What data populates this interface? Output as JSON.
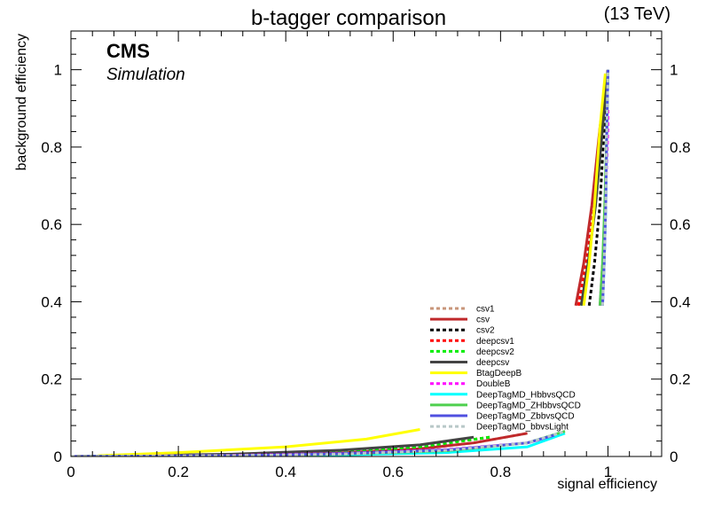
{
  "chart_data": {
    "type": "line",
    "title": "b-tagger comparison",
    "energy_label": "(13 TeV)",
    "experiment_label": "CMS",
    "experiment_sublabel": "Simulation",
    "xlabel": "signal efficiency",
    "ylabel": "background efficiency",
    "xlim": [
      0,
      1.1
    ],
    "ylim": [
      0,
      1.1
    ],
    "x_ticks": [
      0,
      0.2,
      0.4,
      0.6,
      0.8,
      1
    ],
    "x_tick_labels": [
      "0",
      "0.2",
      "0.4",
      "0.6",
      "0.8",
      "1"
    ],
    "y_ticks": [
      0,
      0.2,
      0.4,
      0.6,
      0.8,
      1
    ],
    "y_tick_labels": [
      "0",
      "0.2",
      "0.4",
      "0.6",
      "0.8",
      "1"
    ],
    "grid": false,
    "legend_position": "bottom-right",
    "series": [
      {
        "name": "csv1",
        "color": "#c8967a",
        "dashed": true,
        "x": [
          0,
          0.3,
          0.5,
          0.65,
          0.75,
          0.85
        ],
        "y": [
          0,
          0.003,
          0.009,
          0.02,
          0.035,
          0.06
        ],
        "x2": [
          0.945,
          0.96,
          0.975,
          0.99,
          1.0
        ],
        "y2": [
          0.39,
          0.5,
          0.65,
          0.85,
          1.0
        ]
      },
      {
        "name": "csv",
        "color": "#c0292b",
        "dashed": false,
        "x": [
          0,
          0.3,
          0.5,
          0.65,
          0.75,
          0.85
        ],
        "y": [
          0,
          0.003,
          0.009,
          0.02,
          0.035,
          0.06
        ],
        "x2": [
          0.94,
          0.955,
          0.97,
          0.985,
          1.0
        ],
        "y2": [
          0.39,
          0.5,
          0.65,
          0.85,
          1.0
        ]
      },
      {
        "name": "csv2",
        "color": "#000000",
        "dashed": true,
        "x": [
          0,
          0.3,
          0.5,
          0.65,
          0.75
        ],
        "y": [
          0,
          0.004,
          0.012,
          0.025,
          0.045
        ],
        "x2": [
          0.965,
          0.975,
          0.985,
          0.993,
          1.0
        ],
        "y2": [
          0.39,
          0.5,
          0.65,
          0.85,
          1.0
        ]
      },
      {
        "name": "deepcsv1",
        "color": "#ff0000",
        "dashed": true,
        "x": [
          0,
          0.3,
          0.5,
          0.65,
          0.78
        ],
        "y": [
          0,
          0.005,
          0.012,
          0.025,
          0.05
        ],
        "x2": [
          0.945,
          0.96,
          0.975,
          0.99,
          1.0
        ],
        "y2": [
          0.39,
          0.5,
          0.65,
          0.85,
          1.0
        ]
      },
      {
        "name": "deepcsv2",
        "color": "#00ee00",
        "dashed": true,
        "x": [
          0,
          0.3,
          0.5,
          0.65,
          0.78
        ],
        "y": [
          0,
          0.005,
          0.012,
          0.025,
          0.05
        ],
        "x2": [
          0.95,
          0.963,
          0.977,
          0.99,
          1.0
        ],
        "y2": [
          0.39,
          0.5,
          0.65,
          0.85,
          1.0
        ]
      },
      {
        "name": "deepcsv",
        "color": "#444444",
        "dashed": false,
        "x": [
          0,
          0.3,
          0.5,
          0.65,
          0.75
        ],
        "y": [
          0,
          0.006,
          0.016,
          0.03,
          0.05
        ],
        "x2": [
          0.95,
          0.963,
          0.977,
          0.99,
          1.0
        ],
        "y2": [
          0.39,
          0.5,
          0.65,
          0.85,
          1.0
        ]
      },
      {
        "name": "BtagDeepB",
        "color": "#ffff00",
        "dashed": false,
        "x": [
          0.05,
          0.2,
          0.4,
          0.55,
          0.65
        ],
        "y": [
          0.002,
          0.01,
          0.025,
          0.045,
          0.07
        ],
        "x2": [
          0.955,
          0.965,
          0.975,
          0.985,
          0.995
        ],
        "y2": [
          0.39,
          0.5,
          0.65,
          0.85,
          0.99
        ]
      },
      {
        "name": "DoubleB",
        "color": "#ff00ff",
        "dashed": true,
        "x": [
          0,
          0.3,
          0.5,
          0.7,
          0.85,
          0.92
        ],
        "y": [
          0,
          0.003,
          0.008,
          0.018,
          0.035,
          0.06
        ],
        "x2": [
          0.985,
          0.99,
          0.995,
          1.0,
          1.0
        ],
        "y2": [
          0.39,
          0.5,
          0.65,
          0.85,
          0.9
        ]
      },
      {
        "name": "DeepTagMD_HbbvsQCD",
        "color": "#00ffff",
        "dashed": false,
        "x": [
          0,
          0.3,
          0.5,
          0.7,
          0.85,
          0.92
        ],
        "y": [
          0,
          0.001,
          0.004,
          0.01,
          0.025,
          0.06
        ],
        "x2": [
          0.99,
          0.993,
          0.996,
          0.998,
          1.0
        ],
        "y2": [
          0.39,
          0.5,
          0.65,
          0.85,
          1.0
        ]
      },
      {
        "name": "DeepTagMD_ZHbbvsQCD",
        "color": "#4fd04f",
        "dashed": false,
        "x": [
          0,
          0.3,
          0.5,
          0.7,
          0.85,
          0.92
        ],
        "y": [
          0,
          0.002,
          0.006,
          0.015,
          0.035,
          0.065
        ],
        "x2": [
          0.985,
          0.99,
          0.994,
          0.998,
          1.0
        ],
        "y2": [
          0.39,
          0.5,
          0.65,
          0.85,
          1.0
        ]
      },
      {
        "name": "DeepTagMD_ZbbvsQCD",
        "color": "#5050e0",
        "dashed": false,
        "x": [
          0,
          0.3,
          0.5,
          0.7,
          0.85,
          0.9
        ],
        "y": [
          0,
          0.002,
          0.007,
          0.017,
          0.035,
          0.055
        ],
        "x2": [
          0.99,
          0.993,
          0.996,
          0.998,
          1.0
        ],
        "y2": [
          0.39,
          0.5,
          0.65,
          0.85,
          1.0
        ]
      },
      {
        "name": "DeepTagMD_bbvsLight",
        "color": "#b8c8c8",
        "dashed": true,
        "x": [
          0,
          0.3,
          0.5,
          0.7,
          0.85,
          0.92
        ],
        "y": [
          0,
          0.002,
          0.006,
          0.016,
          0.035,
          0.065
        ],
        "x2": [
          0.99,
          0.993,
          0.996,
          0.998,
          1.0
        ],
        "y2": [
          0.39,
          0.5,
          0.65,
          0.85,
          1.0
        ]
      }
    ]
  }
}
